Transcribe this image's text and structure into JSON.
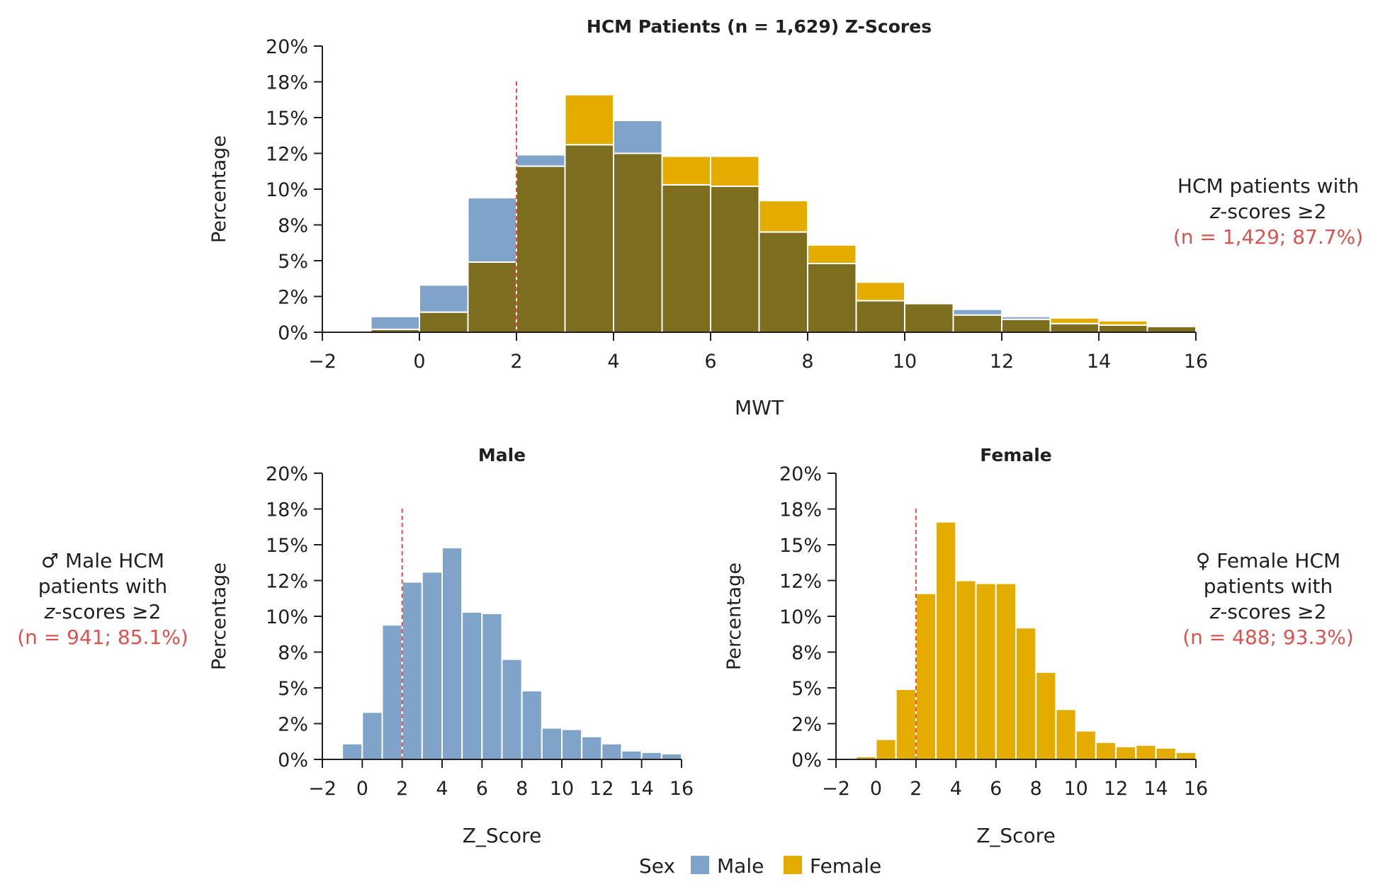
{
  "colors": {
    "male": "#7fa3c9",
    "female": "#e5ac00",
    "overlap": "#7d6d1f",
    "axis": "#231f20",
    "threshold": "#d9534f",
    "annotation_red": "#d9534f"
  },
  "annotations": {
    "combined": {
      "line1": "HCM patients with",
      "z_prefix": "z",
      "line2_rest": "-scores ≥2",
      "count": "(n = 1,429; 87.7%)"
    },
    "male": {
      "symbol": "♂",
      "line1": "Male HCM",
      "line2": "patients with",
      "z_prefix": "z",
      "line3_rest": "-scores ≥2",
      "count": "(n = 941; 85.1%)"
    },
    "female": {
      "symbol": "♀",
      "line1": "Female HCM",
      "line2": "patients with",
      "z_prefix": "z",
      "line3_rest": "-scores ≥2",
      "count": "(n = 488; 93.3%)"
    }
  },
  "legend": {
    "title": "Sex",
    "items": [
      "Male",
      "Female"
    ]
  },
  "chart_data": [
    {
      "id": "combined",
      "type": "bar",
      "title": "HCM Patients (n = 1,629) Z-Scores",
      "xlabel": "MWT",
      "ylabel": "Percentage",
      "xlim": [
        -2,
        16
      ],
      "ylim": [
        0,
        20
      ],
      "xticks": [
        "−2",
        "0",
        "2",
        "4",
        "6",
        "8",
        "10",
        "12",
        "14",
        "16"
      ],
      "yticks": [
        "0%",
        "2%",
        "5%",
        "8%",
        "10%",
        "12%",
        "15%",
        "18%",
        "20%"
      ],
      "threshold": 2,
      "bin_starts": [
        -2,
        -1,
        0,
        1,
        2,
        3,
        4,
        5,
        6,
        7,
        8,
        9,
        10,
        11,
        12,
        13,
        14,
        15
      ],
      "series": [
        {
          "name": "Male",
          "values": [
            0.1,
            1.1,
            3.3,
            9.4,
            12.4,
            13.1,
            14.8,
            10.3,
            10.2,
            7.0,
            4.8,
            2.2,
            2.1,
            1.6,
            1.1,
            0.6,
            0.5,
            0.4
          ]
        },
        {
          "name": "Female",
          "values": [
            0.0,
            0.2,
            1.4,
            4.9,
            11.6,
            16.6,
            12.5,
            12.3,
            12.3,
            9.2,
            6.1,
            3.5,
            2.0,
            1.2,
            0.9,
            1.0,
            0.8,
            0.5
          ]
        }
      ]
    },
    {
      "id": "male",
      "type": "bar",
      "title": "Male",
      "xlabel": "Z_Score",
      "ylabel": "Percentage",
      "xlim": [
        -2,
        16
      ],
      "ylim": [
        0,
        20
      ],
      "xticks": [
        "−2",
        "0",
        "2",
        "4",
        "6",
        "8",
        "10",
        "12",
        "14",
        "16"
      ],
      "yticks": [
        "0%",
        "2%",
        "5%",
        "8%",
        "10%",
        "12%",
        "15%",
        "18%",
        "20%"
      ],
      "threshold": 2,
      "bin_starts": [
        -2,
        -1,
        0,
        1,
        2,
        3,
        4,
        5,
        6,
        7,
        8,
        9,
        10,
        11,
        12,
        13,
        14,
        15
      ],
      "series": [
        {
          "name": "Male",
          "values": [
            0.1,
            1.1,
            3.3,
            9.4,
            12.4,
            13.1,
            14.8,
            10.3,
            10.2,
            7.0,
            4.8,
            2.2,
            2.1,
            1.6,
            1.1,
            0.6,
            0.5,
            0.4
          ]
        }
      ]
    },
    {
      "id": "female",
      "type": "bar",
      "title": "Female",
      "xlabel": "Z_Score",
      "ylabel": "Percentage",
      "xlim": [
        -2,
        16
      ],
      "ylim": [
        0,
        20
      ],
      "xticks": [
        "−2",
        "0",
        "2",
        "4",
        "6",
        "8",
        "10",
        "12",
        "14",
        "16"
      ],
      "yticks": [
        "0%",
        "2%",
        "5%",
        "8%",
        "10%",
        "12%",
        "15%",
        "18%",
        "20%"
      ],
      "threshold": 2,
      "bin_starts": [
        -2,
        -1,
        0,
        1,
        2,
        3,
        4,
        5,
        6,
        7,
        8,
        9,
        10,
        11,
        12,
        13,
        14,
        15
      ],
      "series": [
        {
          "name": "Female",
          "values": [
            0.0,
            0.2,
            1.4,
            4.9,
            11.6,
            16.6,
            12.5,
            12.3,
            12.3,
            9.2,
            6.1,
            3.5,
            2.0,
            1.2,
            0.9,
            1.0,
            0.8,
            0.5
          ]
        }
      ]
    }
  ]
}
